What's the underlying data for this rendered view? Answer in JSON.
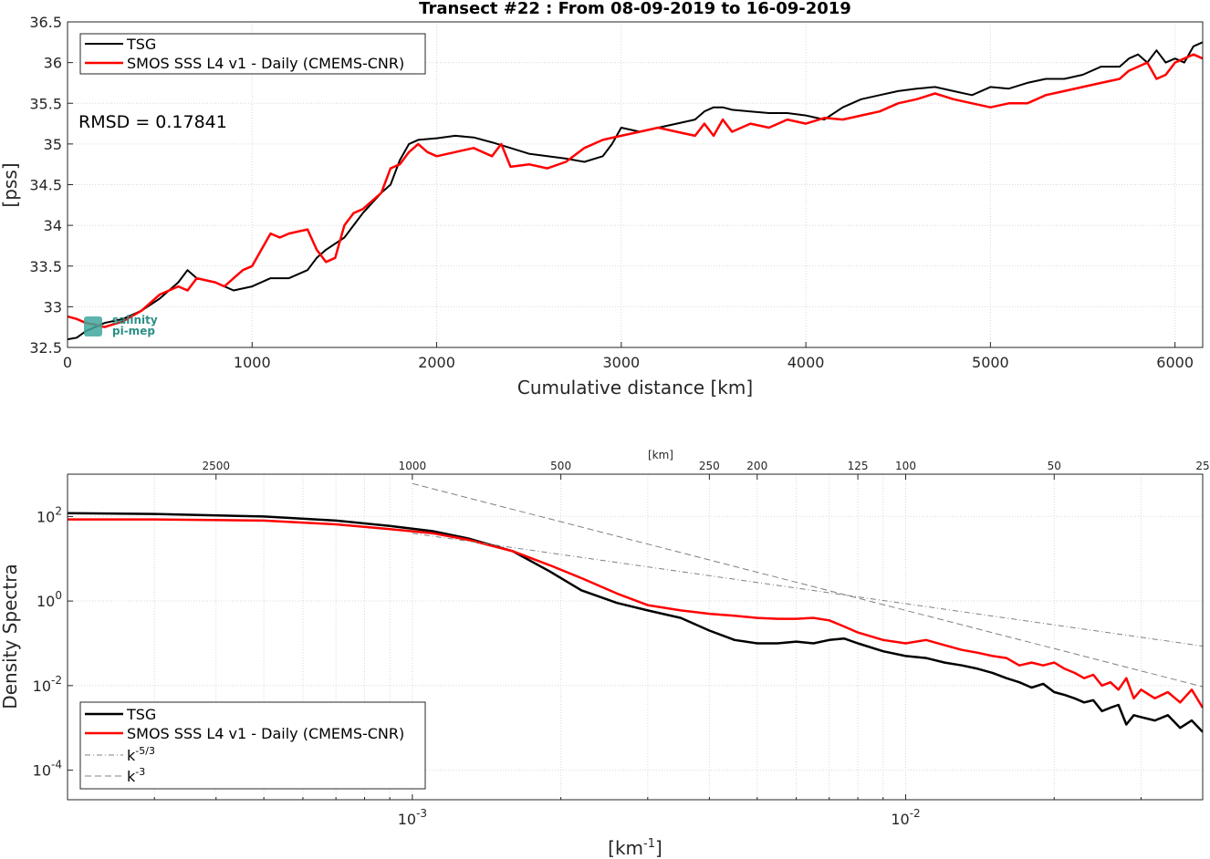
{
  "chart_data": [
    {
      "type": "line",
      "title": "Transect #22 : From 08-09-2019 to 16-09-2019",
      "xlabel": "Cumulative distance [km]",
      "ylabel": "[pss]",
      "xlim": [
        0,
        6150
      ],
      "ylim": [
        32.5,
        36.5
      ],
      "xticks": [
        "0",
        "1000",
        "2000",
        "3000",
        "4000",
        "5000",
        "6000"
      ],
      "xtick_values": [
        0,
        1000,
        2000,
        3000,
        4000,
        5000,
        6000
      ],
      "yticks": [
        "32.5",
        "33",
        "33.5",
        "34",
        "34.5",
        "35",
        "35.5",
        "36",
        "36.5"
      ],
      "ytick_values": [
        32.5,
        33,
        33.5,
        34,
        34.5,
        35,
        35.5,
        36,
        36.5
      ],
      "grid": true,
      "legend_position": "top-left",
      "annotation": "RMSD = 0.17841",
      "logo_text": [
        "salinity",
        "pi-mep"
      ],
      "series": [
        {
          "name": "TSG",
          "color": "#000000",
          "x": [
            0,
            50,
            100,
            150,
            200,
            300,
            400,
            500,
            600,
            650,
            700,
            800,
            850,
            900,
            1000,
            1100,
            1200,
            1300,
            1350,
            1400,
            1500,
            1600,
            1700,
            1750,
            1800,
            1850,
            1900,
            2000,
            2100,
            2200,
            2300,
            2400,
            2500,
            2600,
            2700,
            2800,
            2900,
            2950,
            3000,
            3100,
            3200,
            3300,
            3400,
            3450,
            3500,
            3550,
            3600,
            3700,
            3800,
            3900,
            4000,
            4100,
            4200,
            4300,
            4400,
            4500,
            4600,
            4700,
            4800,
            4900,
            5000,
            5100,
            5200,
            5300,
            5400,
            5500,
            5600,
            5700,
            5750,
            5800,
            5850,
            5900,
            5950,
            6000,
            6050,
            6100,
            6150
          ],
          "y": [
            32.6,
            32.62,
            32.7,
            32.75,
            32.8,
            32.85,
            32.95,
            33.1,
            33.3,
            33.45,
            33.35,
            33.3,
            33.25,
            33.2,
            33.25,
            33.35,
            33.35,
            33.45,
            33.6,
            33.7,
            33.85,
            34.15,
            34.4,
            34.5,
            34.8,
            35.0,
            35.05,
            35.07,
            35.1,
            35.08,
            35.02,
            34.95,
            34.88,
            34.85,
            34.82,
            34.78,
            34.85,
            35.0,
            35.2,
            35.15,
            35.2,
            35.25,
            35.3,
            35.4,
            35.45,
            35.45,
            35.42,
            35.4,
            35.38,
            35.38,
            35.35,
            35.3,
            35.45,
            35.55,
            35.6,
            35.65,
            35.68,
            35.7,
            35.65,
            35.6,
            35.7,
            35.68,
            35.75,
            35.8,
            35.8,
            35.85,
            35.95,
            35.95,
            36.05,
            36.1,
            36.0,
            36.15,
            36.0,
            36.05,
            36.0,
            36.2,
            36.25
          ]
        },
        {
          "name": "SMOS SSS L4 v1 - Daily (CMEMS-CNR)",
          "color": "#ff0000",
          "x": [
            0,
            50,
            100,
            150,
            200,
            300,
            400,
            500,
            600,
            650,
            700,
            800,
            850,
            900,
            950,
            1000,
            1050,
            1100,
            1150,
            1200,
            1300,
            1350,
            1400,
            1450,
            1500,
            1550,
            1600,
            1700,
            1750,
            1800,
            1850,
            1900,
            1950,
            2000,
            2100,
            2200,
            2300,
            2350,
            2400,
            2500,
            2600,
            2700,
            2800,
            2900,
            3000,
            3100,
            3200,
            3300,
            3400,
            3450,
            3500,
            3550,
            3600,
            3700,
            3800,
            3900,
            4000,
            4100,
            4200,
            4300,
            4400,
            4500,
            4600,
            4700,
            4800,
            4900,
            5000,
            5100,
            5200,
            5300,
            5400,
            5500,
            5600,
            5700,
            5750,
            5800,
            5850,
            5900,
            5950,
            6000,
            6050,
            6100,
            6150
          ],
          "y": [
            32.88,
            32.85,
            32.8,
            32.78,
            32.75,
            32.82,
            32.95,
            33.15,
            33.25,
            33.2,
            33.35,
            33.3,
            33.25,
            33.35,
            33.45,
            33.5,
            33.7,
            33.9,
            33.85,
            33.9,
            33.95,
            33.7,
            33.55,
            33.6,
            34.0,
            34.15,
            34.2,
            34.4,
            34.7,
            34.75,
            34.9,
            35.0,
            34.9,
            34.85,
            34.9,
            34.95,
            34.85,
            35.0,
            34.72,
            34.75,
            34.7,
            34.78,
            34.95,
            35.05,
            35.1,
            35.15,
            35.2,
            35.15,
            35.1,
            35.25,
            35.1,
            35.3,
            35.15,
            35.25,
            35.2,
            35.3,
            35.25,
            35.32,
            35.3,
            35.35,
            35.4,
            35.5,
            35.55,
            35.62,
            35.55,
            35.5,
            35.45,
            35.5,
            35.5,
            35.6,
            35.65,
            35.7,
            35.75,
            35.8,
            35.9,
            35.95,
            36.0,
            35.8,
            35.85,
            36.0,
            36.05,
            36.1,
            36.05
          ]
        }
      ]
    },
    {
      "type": "line",
      "xlabel": "[km",
      "xlabel_sup": "-1",
      "xlabel_end": "]",
      "ylabel": "Density Spectra",
      "top_axis_label": "[km]",
      "xscale": "log",
      "yscale": "log",
      "xlim": [
        0.0002,
        0.04
      ],
      "ylim": [
        2e-05,
        1000
      ],
      "xticks": [
        {
          "value": 0.001,
          "base": "10",
          "exp": "-3"
        },
        {
          "value": 0.01,
          "base": "10",
          "exp": "-2"
        }
      ],
      "yticks": [
        {
          "value": 0.0001,
          "base": "10",
          "exp": "-4"
        },
        {
          "value": 0.01,
          "base": "10",
          "exp": "-2"
        },
        {
          "value": 1,
          "base": "10",
          "exp": "0"
        },
        {
          "value": 100,
          "base": "10",
          "exp": "2"
        }
      ],
      "top_ticks": [
        {
          "km": 2500,
          "label": "2500"
        },
        {
          "km": 1000,
          "label": "1000"
        },
        {
          "km": 500,
          "label": "500"
        },
        {
          "km": 250,
          "label": "250"
        },
        {
          "km": 200,
          "label": "200"
        },
        {
          "km": 125,
          "label": "125"
        },
        {
          "km": 100,
          "label": "100"
        },
        {
          "km": 50,
          "label": "50"
        },
        {
          "km": 25,
          "label": "25"
        }
      ],
      "grid": true,
      "legend_position": "bottom-left",
      "series": [
        {
          "name": "TSG",
          "color": "#000000",
          "style": "solid",
          "x": [
            0.0002,
            0.0003,
            0.0005,
            0.0007,
            0.0009,
            0.0011,
            0.0013,
            0.0016,
            0.0019,
            0.0022,
            0.0026,
            0.003,
            0.0035,
            0.004,
            0.0045,
            0.005,
            0.0055,
            0.006,
            0.0065,
            0.007,
            0.0075,
            0.008,
            0.009,
            0.01,
            0.011,
            0.012,
            0.013,
            0.014,
            0.015,
            0.016,
            0.017,
            0.018,
            0.019,
            0.02,
            0.021,
            0.022,
            0.023,
            0.024,
            0.025,
            0.026,
            0.027,
            0.028,
            0.029,
            0.03,
            0.032,
            0.034,
            0.036,
            0.038,
            0.04
          ],
          "y": [
            120,
            115,
            100,
            80,
            60,
            45,
            30,
            15,
            5,
            1.8,
            0.9,
            0.6,
            0.4,
            0.2,
            0.12,
            0.1,
            0.1,
            0.11,
            0.1,
            0.12,
            0.13,
            0.1,
            0.065,
            0.05,
            0.045,
            0.035,
            0.03,
            0.025,
            0.02,
            0.015,
            0.012,
            0.009,
            0.011,
            0.007,
            0.006,
            0.005,
            0.004,
            0.0045,
            0.0025,
            0.003,
            0.0035,
            0.0012,
            0.002,
            0.0018,
            0.0015,
            0.002,
            0.001,
            0.0015,
            0.0008
          ]
        },
        {
          "name": "SMOS SSS L4 v1 - Daily (CMEMS-CNR)",
          "color": "#ff0000",
          "style": "solid",
          "x": [
            0.0002,
            0.0003,
            0.0005,
            0.0007,
            0.0009,
            0.0011,
            0.0013,
            0.0016,
            0.0019,
            0.0022,
            0.0026,
            0.003,
            0.0035,
            0.004,
            0.0045,
            0.005,
            0.0055,
            0.006,
            0.0065,
            0.007,
            0.0075,
            0.008,
            0.009,
            0.01,
            0.011,
            0.012,
            0.013,
            0.014,
            0.015,
            0.016,
            0.017,
            0.018,
            0.019,
            0.02,
            0.021,
            0.022,
            0.023,
            0.024,
            0.025,
            0.026,
            0.027,
            0.028,
            0.029,
            0.03,
            0.032,
            0.034,
            0.036,
            0.038,
            0.04
          ],
          "y": [
            85,
            85,
            80,
            65,
            50,
            40,
            28,
            15,
            7,
            3.5,
            1.5,
            0.8,
            0.6,
            0.5,
            0.45,
            0.4,
            0.38,
            0.38,
            0.4,
            0.35,
            0.25,
            0.18,
            0.12,
            0.1,
            0.12,
            0.09,
            0.07,
            0.06,
            0.05,
            0.045,
            0.03,
            0.035,
            0.03,
            0.035,
            0.025,
            0.02,
            0.015,
            0.018,
            0.01,
            0.012,
            0.008,
            0.015,
            0.005,
            0.008,
            0.005,
            0.007,
            0.004,
            0.008,
            0.003
          ]
        },
        {
          "name": "k",
          "name_sup": "-5/3",
          "color": "#808080",
          "style": "dashdot",
          "x": [
            0.001,
            0.04
          ],
          "y": [
            40,
            0.086
          ]
        },
        {
          "name": "k",
          "name_sup": "-3",
          "color": "#808080",
          "style": "dashed",
          "x": [
            0.001,
            0.04
          ],
          "y": [
            600,
            0.0094
          ]
        }
      ]
    }
  ]
}
